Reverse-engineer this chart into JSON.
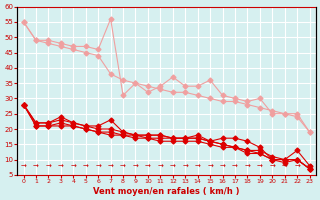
{
  "xlabel": "Vent moyen/en rafales ( km/h )",
  "ylabel": "",
  "xlim": [
    0,
    23
  ],
  "ylim": [
    5,
    60
  ],
  "yticks": [
    5,
    10,
    15,
    20,
    25,
    30,
    35,
    40,
    45,
    50,
    55,
    60
  ],
  "xticks": [
    0,
    1,
    2,
    3,
    4,
    5,
    6,
    7,
    8,
    9,
    10,
    11,
    12,
    13,
    14,
    15,
    16,
    17,
    18,
    19,
    20,
    21,
    22,
    23
  ],
  "bg_color": "#d6f0f0",
  "grid_color": "#ffffff",
  "series_light": [
    [
      55,
      49,
      49,
      48,
      47,
      47,
      46,
      56,
      31,
      35,
      32,
      34,
      37,
      34,
      34,
      36,
      31,
      30,
      29,
      30,
      25,
      25,
      25,
      19
    ],
    [
      55,
      49,
      48,
      47,
      46,
      45,
      44,
      38,
      36,
      35,
      34,
      33,
      32,
      32,
      31,
      30,
      29,
      29,
      28,
      27,
      26,
      25,
      24,
      19
    ]
  ],
  "series_red": [
    [
      28,
      22,
      22,
      24,
      22,
      21,
      21,
      23,
      19,
      18,
      18,
      18,
      17,
      17,
      18,
      16,
      17,
      17,
      16,
      14,
      10,
      10,
      13,
      8
    ],
    [
      28,
      22,
      22,
      23,
      22,
      21,
      20,
      20,
      19,
      18,
      18,
      18,
      17,
      17,
      17,
      16,
      15,
      14,
      13,
      13,
      11,
      10,
      10,
      7
    ],
    [
      28,
      21,
      21,
      22,
      21,
      20,
      19,
      19,
      18,
      18,
      17,
      17,
      17,
      17,
      17,
      16,
      15,
      14,
      13,
      12,
      10,
      10,
      10,
      7
    ],
    [
      28,
      21,
      21,
      21,
      21,
      20,
      19,
      18,
      18,
      17,
      17,
      16,
      16,
      16,
      16,
      15,
      14,
      14,
      12,
      12,
      10,
      9,
      10,
      7
    ]
  ],
  "light_color": "#f0a0a0",
  "red_color": "#dd0000",
  "marker": "D",
  "marker_size": 2.5,
  "line_width": 0.8
}
